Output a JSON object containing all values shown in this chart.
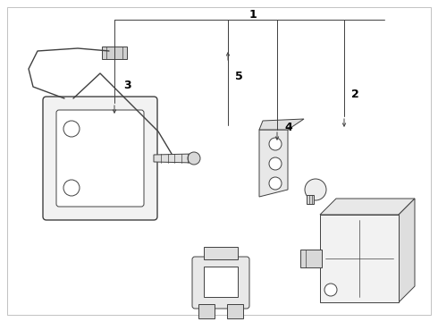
{
  "bg_color": "#ffffff",
  "line_color": "#404040",
  "text_color": "#000000",
  "fig_width": 4.9,
  "fig_height": 3.6,
  "dpi": 100
}
